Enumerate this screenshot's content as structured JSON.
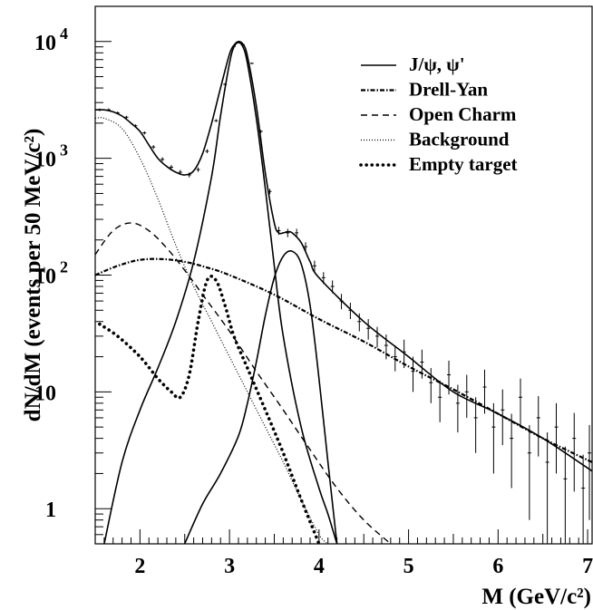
{
  "chart_data": {
    "type": "line",
    "title": "",
    "xlabel": "M (GeV/c²)",
    "ylabel": "dN/dM (events per 50 MeV/c²)",
    "xlim": [
      1.5,
      7.05
    ],
    "ylim": [
      0.5,
      20000
    ],
    "yscale": "log",
    "grid": false,
    "legend_position": "top-right",
    "x_ticks": [
      {
        "value": 2,
        "label": "2"
      },
      {
        "value": 3,
        "label": "3"
      },
      {
        "value": 4,
        "label": "4"
      },
      {
        "value": 5,
        "label": "5"
      },
      {
        "value": 6,
        "label": "6"
      },
      {
        "value": 7,
        "label": "7"
      }
    ],
    "y_ticks": [
      {
        "value": 10000,
        "label": "10",
        "exponent": "4"
      },
      {
        "value": 1000,
        "label": "10",
        "exponent": "3"
      },
      {
        "value": 100,
        "label": "10",
        "exponent": "2"
      },
      {
        "value": 10,
        "label": "10",
        "exponent": ""
      },
      {
        "value": 1,
        "label": "1",
        "exponent": ""
      }
    ],
    "series": [
      {
        "name": "J/ψ, ψ'",
        "style": "solid",
        "components": [
          {
            "x": [
              1.6,
              1.8,
              2.0,
              2.2,
              2.4,
              2.6,
              2.8,
              2.9,
              3.0,
              3.05,
              3.1,
              3.15,
              3.2,
              3.3,
              3.4,
              3.5,
              3.6,
              3.8,
              4.0,
              4.1,
              4.2
            ],
            "y": [
              0.5,
              2.5,
              7,
              16,
              40,
              130,
              700,
              2300,
              6500,
              9000,
              9800,
              9000,
              6500,
              2200,
              550,
              120,
              30,
              5,
              1.5,
              0.9,
              0.5
            ]
          },
          {
            "x": [
              2.5,
              2.7,
              2.9,
              3.1,
              3.2,
              3.3,
              3.4,
              3.5,
              3.6,
              3.7,
              3.8,
              3.9,
              4.0,
              4.1,
              4.2
            ],
            "y": [
              0.5,
              1.1,
              2.0,
              4.2,
              8,
              18,
              45,
              95,
              145,
              160,
              125,
              55,
              13,
              2.5,
              0.5
            ]
          }
        ]
      },
      {
        "name": "Drell-Yan",
        "style": "dash-dot",
        "x": [
          1.5,
          1.75,
          2.0,
          2.25,
          2.5,
          2.75,
          3.0,
          3.5,
          4.0,
          4.5,
          5.0,
          5.5,
          6.0,
          6.5,
          7.05
        ],
        "y": [
          100,
          120,
          135,
          137,
          130,
          116,
          100,
          68,
          42,
          27,
          16.5,
          10.5,
          6.5,
          4.0,
          2.5
        ]
      },
      {
        "name": "Open Charm",
        "style": "dashed",
        "x": [
          1.5,
          1.7,
          1.9,
          2.1,
          2.3,
          2.5,
          2.7,
          3.0,
          3.3,
          3.6,
          3.9,
          4.2,
          4.5,
          4.8
        ],
        "y": [
          150,
          240,
          280,
          240,
          170,
          110,
          68,
          33,
          15,
          7,
          3.2,
          1.5,
          0.8,
          0.5
        ]
      },
      {
        "name": "Background",
        "style": "dotted-fine",
        "x": [
          1.5,
          1.6,
          1.8,
          2.0,
          2.2,
          2.4,
          2.6,
          2.8,
          3.0,
          3.2,
          3.4,
          3.6,
          3.8,
          4.0,
          4.1
        ],
        "y": [
          2200,
          2200,
          1800,
          1000,
          450,
          180,
          80,
          40,
          20,
          10,
          5,
          2.5,
          1.2,
          0.6,
          0.5
        ]
      },
      {
        "name": "Empty target",
        "style": "dotted-heavy",
        "x": [
          1.55,
          1.75,
          2.0,
          2.2,
          2.35,
          2.45,
          2.55,
          2.65,
          2.75,
          2.85,
          2.95,
          3.05,
          3.2,
          3.4,
          3.6,
          3.8,
          4.0
        ],
        "y": [
          38,
          30,
          20,
          13,
          10,
          9,
          14,
          40,
          90,
          90,
          55,
          30,
          16,
          7,
          3,
          1.2,
          0.5
        ]
      }
    ],
    "total_fit": {
      "x": [
        1.5,
        1.6,
        1.7,
        1.8,
        1.9,
        2.0,
        2.1,
        2.2,
        2.3,
        2.4,
        2.5,
        2.6,
        2.7,
        2.8,
        2.9,
        3.0,
        3.05,
        3.1,
        3.15,
        3.2,
        3.3,
        3.4,
        3.5,
        3.55,
        3.6,
        3.65,
        3.7,
        3.8,
        3.9,
        4.0,
        4.5,
        5.0,
        5.5,
        6.0,
        6.5,
        7.05
      ],
      "y": [
        2600,
        2600,
        2500,
        2300,
        2000,
        1700,
        1300,
        1000,
        850,
        760,
        720,
        780,
        1100,
        2000,
        4000,
        7800,
        9300,
        10000,
        9500,
        7500,
        2800,
        750,
        280,
        230,
        230,
        235,
        230,
        190,
        130,
        95,
        40,
        20,
        10,
        6.5,
        4.0,
        2.1
      ]
    },
    "data_points": {
      "x": [
        1.55,
        1.65,
        1.75,
        1.85,
        1.95,
        2.05,
        2.15,
        2.25,
        2.35,
        2.45,
        2.55,
        2.65,
        2.75,
        2.85,
        2.95,
        3.05,
        3.15,
        3.25,
        3.35,
        3.45,
        3.55,
        3.65,
        3.75,
        3.85,
        3.95,
        4.05,
        4.15,
        4.25,
        4.35,
        4.45,
        4.55,
        4.65,
        4.75,
        4.85,
        4.95,
        5.05,
        5.15,
        5.25,
        5.35,
        5.45,
        5.55,
        5.65,
        5.75,
        5.85,
        5.95,
        6.05,
        6.15,
        6.25,
        6.35,
        6.45,
        6.55,
        6.65,
        6.75,
        6.85,
        6.95,
        7.02
      ],
      "y": [
        2600,
        2600,
        2450,
        2250,
        1900,
        1650,
        1250,
        980,
        840,
        760,
        720,
        800,
        1150,
        2100,
        4300,
        9100,
        9400,
        6500,
        1700,
        520,
        240,
        230,
        230,
        175,
        120,
        95,
        80,
        60,
        50,
        40,
        35,
        30,
        25,
        20,
        22,
        15,
        18,
        12,
        9,
        14,
        8,
        10,
        6,
        11,
        5,
        7,
        4,
        9,
        3,
        6,
        2.5,
        5,
        1.8,
        4,
        1.5,
        3
      ],
      "err": [
        70,
        70,
        65,
        60,
        55,
        50,
        45,
        40,
        35,
        35,
        35,
        35,
        45,
        60,
        85,
        120,
        120,
        100,
        50,
        28,
        19,
        19,
        19,
        16,
        13,
        11,
        10,
        9,
        8,
        7,
        7,
        6,
        6,
        5,
        6,
        5,
        5,
        4,
        3.5,
        4.5,
        3.5,
        4,
        3,
        4.5,
        3,
        3.5,
        2.5,
        4,
        2.2,
        3.2,
        2,
        3,
        1.6,
        2.6,
        1.4,
        2.2
      ]
    }
  }
}
